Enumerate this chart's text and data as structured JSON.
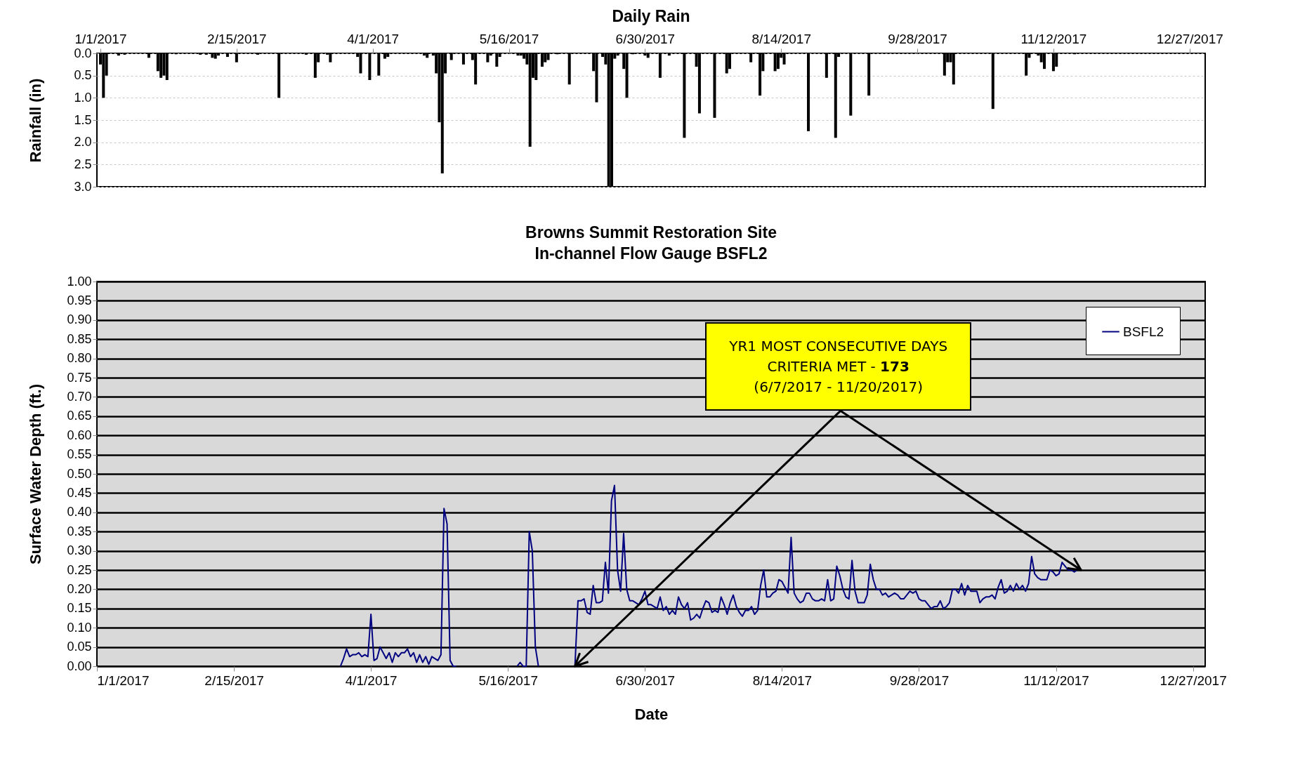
{
  "chart_data": [
    {
      "type": "bar",
      "title": "Daily Rain",
      "ylabel": "Rainfall (in)",
      "color": "#000000",
      "grid": "y",
      "xlim": [
        "2017-01-01",
        "2017-12-31"
      ],
      "xticks": [
        {
          "value": "2017-01-01",
          "label": "1/1/2017"
        },
        {
          "value": "2017-02-15",
          "label": "2/15/2017"
        },
        {
          "value": "2017-04-01",
          "label": "4/1/2017"
        },
        {
          "value": "2017-05-16",
          "label": "5/16/2017"
        },
        {
          "value": "2017-06-30",
          "label": "6/30/2017"
        },
        {
          "value": "2017-08-14",
          "label": "8/14/2017"
        },
        {
          "value": "2017-09-28",
          "label": "9/28/2017"
        },
        {
          "value": "2017-11-12",
          "label": "11/12/2017"
        },
        {
          "value": "2017-12-27",
          "label": "12/27/2017"
        }
      ],
      "ylim": [
        3,
        0
      ],
      "yticks": [
        {
          "value": 0,
          "label": "0.0"
        },
        {
          "value": 0.5,
          "label": "0.5"
        },
        {
          "value": 1,
          "label": "1.0"
        },
        {
          "value": 1.5,
          "label": "1.5"
        },
        {
          "value": 2,
          "label": "2.0"
        },
        {
          "value": 2.5,
          "label": "2.5"
        },
        {
          "value": 3,
          "label": "3.0"
        }
      ],
      "x": [
        "2017-01-01",
        "2017-01-02",
        "2017-01-03",
        "2017-01-07",
        "2017-01-09",
        "2017-01-17",
        "2017-01-20",
        "2017-01-21",
        "2017-01-22",
        "2017-01-23",
        "2017-01-26",
        "2017-02-03",
        "2017-02-05",
        "2017-02-07",
        "2017-02-08",
        "2017-02-09",
        "2017-02-12",
        "2017-02-15",
        "2017-02-22",
        "2017-03-01",
        "2017-03-10",
        "2017-03-13",
        "2017-03-14",
        "2017-03-17",
        "2017-03-18",
        "2017-03-27",
        "2017-03-28",
        "2017-03-31",
        "2017-04-03",
        "2017-04-05",
        "2017-04-06",
        "2017-04-18",
        "2017-04-19",
        "2017-04-21",
        "2017-04-22",
        "2017-04-23",
        "2017-04-24",
        "2017-04-25",
        "2017-04-27",
        "2017-05-01",
        "2017-05-04",
        "2017-05-05",
        "2017-05-09",
        "2017-05-10",
        "2017-05-12",
        "2017-05-13",
        "2017-05-19",
        "2017-05-20",
        "2017-05-21",
        "2017-05-22",
        "2017-05-23",
        "2017-05-24",
        "2017-05-25",
        "2017-05-27",
        "2017-05-28",
        "2017-05-29",
        "2017-06-01",
        "2017-06-05",
        "2017-06-13",
        "2017-06-14",
        "2017-06-16",
        "2017-06-17",
        "2017-06-18",
        "2017-06-19",
        "2017-06-20",
        "2017-06-21",
        "2017-06-23",
        "2017-06-24",
        "2017-06-26",
        "2017-06-30",
        "2017-07-01",
        "2017-07-05",
        "2017-07-08",
        "2017-07-13",
        "2017-07-17",
        "2017-07-18",
        "2017-07-23",
        "2017-07-27",
        "2017-07-28",
        "2017-08-04",
        "2017-08-07",
        "2017-08-08",
        "2017-08-12",
        "2017-08-13",
        "2017-08-14",
        "2017-08-15",
        "2017-08-23",
        "2017-08-29",
        "2017-09-01",
        "2017-09-02",
        "2017-09-06",
        "2017-09-12",
        "2017-10-07",
        "2017-10-08",
        "2017-10-09",
        "2017-10-10",
        "2017-10-23",
        "2017-11-03",
        "2017-11-04",
        "2017-11-07",
        "2017-11-08",
        "2017-11-09",
        "2017-11-12",
        "2017-11-13",
        "2017-11-19"
      ],
      "values": [
        0.25,
        1.0,
        0.5,
        0.05,
        0.03,
        0.1,
        0.4,
        0.55,
        0.5,
        0.6,
        0.02,
        0.03,
        0.03,
        0.1,
        0.12,
        0.05,
        0.08,
        0.2,
        0.03,
        1.0,
        0.03,
        0.55,
        0.2,
        0.03,
        0.2,
        0.08,
        0.45,
        0.6,
        0.5,
        0.12,
        0.08,
        0.05,
        0.1,
        0.05,
        0.45,
        1.55,
        2.7,
        0.45,
        0.15,
        0.25,
        0.15,
        0.7,
        0.2,
        0.05,
        0.3,
        0.08,
        0.05,
        0.05,
        0.12,
        0.25,
        2.1,
        0.55,
        0.6,
        0.3,
        0.2,
        0.15,
        0.02,
        0.7,
        0.4,
        1.1,
        0.08,
        0.25,
        3.0,
        3.0,
        0.12,
        0.05,
        0.35,
        1.0,
        0.02,
        0.05,
        0.1,
        0.55,
        0.05,
        1.9,
        0.3,
        1.35,
        1.45,
        0.45,
        0.35,
        0.2,
        0.95,
        0.4,
        0.4,
        0.35,
        0.1,
        0.25,
        1.75,
        0.55,
        1.9,
        0.08,
        1.4,
        0.95,
        0.5,
        0.2,
        0.2,
        0.7,
        1.25,
        0.5,
        0.1,
        0.05,
        0.2,
        0.35,
        0.4,
        0.3,
        0.02
      ]
    },
    {
      "type": "line",
      "title": "Browns Summit Restoration Site\nIn-channel Flow Gauge BSFL2",
      "xlabel": "Date",
      "ylabel": "Surface Water Depth (ft.)",
      "grid": "y",
      "legend": "top right",
      "xlim": [
        "2017-01-01",
        "2017-12-31"
      ],
      "xticks": [
        {
          "value": "2017-01-01",
          "label": "1/1/2017"
        },
        {
          "value": "2017-02-15",
          "label": "2/15/2017"
        },
        {
          "value": "2017-04-01",
          "label": "4/1/2017"
        },
        {
          "value": "2017-05-16",
          "label": "5/16/2017"
        },
        {
          "value": "2017-06-30",
          "label": "6/30/2017"
        },
        {
          "value": "2017-08-14",
          "label": "8/14/2017"
        },
        {
          "value": "2017-09-28",
          "label": "9/28/2017"
        },
        {
          "value": "2017-11-12",
          "label": "11/12/2017"
        },
        {
          "value": "2017-12-27",
          "label": "12/27/2017"
        }
      ],
      "ylim": [
        0,
        1
      ],
      "yticks": [
        {
          "value": 0,
          "label": "0.00"
        },
        {
          "value": 0.05,
          "label": "0.05"
        },
        {
          "value": 0.1,
          "label": "0.10"
        },
        {
          "value": 0.15,
          "label": "0.15"
        },
        {
          "value": 0.2,
          "label": "0.20"
        },
        {
          "value": 0.25,
          "label": "0.25"
        },
        {
          "value": 0.3,
          "label": "0.30"
        },
        {
          "value": 0.35,
          "label": "0.35"
        },
        {
          "value": 0.4,
          "label": "0.40"
        },
        {
          "value": 0.45,
          "label": "0.45"
        },
        {
          "value": 0.5,
          "label": "0.50"
        },
        {
          "value": 0.55,
          "label": "0.55"
        },
        {
          "value": 0.6,
          "label": "0.60"
        },
        {
          "value": 0.65,
          "label": "0.65"
        },
        {
          "value": 0.7,
          "label": "0.70"
        },
        {
          "value": 0.75,
          "label": "0.75"
        },
        {
          "value": 0.8,
          "label": "0.80"
        },
        {
          "value": 0.85,
          "label": "0.85"
        },
        {
          "value": 0.9,
          "label": "0.90"
        },
        {
          "value": 0.95,
          "label": "0.95"
        },
        {
          "value": 1,
          "label": "1.00"
        }
      ],
      "annotations": [
        {
          "text": "YR1 MOST CONSECUTIVE DAYS\nCRITERIA MET - 173\n(6/7/2017 - 11/20/2017)",
          "x": "2017-06-07",
          "y": 0
        }
      ],
      "series": [
        {
          "name": "BSFL2",
          "color": "#000080",
          "x": [
            "2017-03-22",
            "2017-03-23",
            "2017-03-24",
            "2017-03-25",
            "2017-03-26",
            "2017-03-27",
            "2017-03-28",
            "2017-03-29",
            "2017-03-30",
            "2017-03-31",
            "2017-04-01",
            "2017-04-02",
            "2017-04-03",
            "2017-04-04",
            "2017-04-05",
            "2017-04-06",
            "2017-04-07",
            "2017-04-08",
            "2017-04-09",
            "2017-04-10",
            "2017-04-11",
            "2017-04-12",
            "2017-04-13",
            "2017-04-14",
            "2017-04-15",
            "2017-04-16",
            "2017-04-17",
            "2017-04-18",
            "2017-04-19",
            "2017-04-20",
            "2017-04-21",
            "2017-04-22",
            "2017-04-23",
            "2017-04-24",
            "2017-04-25",
            "2017-04-26",
            "2017-04-27",
            "2017-04-28",
            "2017-04-29",
            "2017-04-30",
            "2017-05-19",
            "2017-05-20",
            "2017-05-21",
            "2017-05-22",
            "2017-05-23",
            "2017-05-24",
            "2017-05-25",
            "2017-05-26",
            "2017-05-27",
            "2017-06-07",
            "2017-06-08",
            "2017-06-09",
            "2017-06-10",
            "2017-06-11",
            "2017-06-12",
            "2017-06-13",
            "2017-06-14",
            "2017-06-15",
            "2017-06-16",
            "2017-06-17",
            "2017-06-18",
            "2017-06-19",
            "2017-06-20",
            "2017-06-21",
            "2017-06-22",
            "2017-06-23",
            "2017-06-24",
            "2017-06-25",
            "2017-06-26",
            "2017-06-27",
            "2017-06-28",
            "2017-06-29",
            "2017-06-30",
            "2017-07-01",
            "2017-07-02",
            "2017-07-03",
            "2017-07-04",
            "2017-07-05",
            "2017-07-06",
            "2017-07-07",
            "2017-07-08",
            "2017-07-09",
            "2017-07-10",
            "2017-07-11",
            "2017-07-12",
            "2017-07-13",
            "2017-07-14",
            "2017-07-15",
            "2017-07-16",
            "2017-07-17",
            "2017-07-18",
            "2017-07-19",
            "2017-07-20",
            "2017-07-21",
            "2017-07-22",
            "2017-07-23",
            "2017-07-24",
            "2017-07-25",
            "2017-07-26",
            "2017-07-27",
            "2017-07-28",
            "2017-07-29",
            "2017-07-30",
            "2017-07-31",
            "2017-08-01",
            "2017-08-02",
            "2017-08-03",
            "2017-08-04",
            "2017-08-05",
            "2017-08-06",
            "2017-08-07",
            "2017-08-08",
            "2017-08-09",
            "2017-08-10",
            "2017-08-11",
            "2017-08-12",
            "2017-08-13",
            "2017-08-14",
            "2017-08-15",
            "2017-08-16",
            "2017-08-17",
            "2017-08-18",
            "2017-08-19",
            "2017-08-20",
            "2017-08-21",
            "2017-08-22",
            "2017-08-23",
            "2017-08-24",
            "2017-08-25",
            "2017-08-26",
            "2017-08-27",
            "2017-08-28",
            "2017-08-29",
            "2017-08-30",
            "2017-08-31",
            "2017-09-01",
            "2017-09-02",
            "2017-09-03",
            "2017-09-04",
            "2017-09-05",
            "2017-09-06",
            "2017-09-07",
            "2017-09-08",
            "2017-09-09",
            "2017-09-10",
            "2017-09-11",
            "2017-09-12",
            "2017-09-13",
            "2017-09-14",
            "2017-09-15",
            "2017-09-16",
            "2017-09-17",
            "2017-09-18",
            "2017-09-19",
            "2017-09-20",
            "2017-09-21",
            "2017-09-22",
            "2017-09-23",
            "2017-09-24",
            "2017-09-25",
            "2017-09-26",
            "2017-09-27",
            "2017-09-28",
            "2017-09-29",
            "2017-09-30",
            "2017-10-01",
            "2017-10-02",
            "2017-10-03",
            "2017-10-04",
            "2017-10-05",
            "2017-10-06",
            "2017-10-07",
            "2017-10-08",
            "2017-10-09",
            "2017-10-10",
            "2017-10-11",
            "2017-10-12",
            "2017-10-13",
            "2017-10-14",
            "2017-10-15",
            "2017-10-16",
            "2017-10-17",
            "2017-10-18",
            "2017-10-19",
            "2017-10-20",
            "2017-10-21",
            "2017-10-22",
            "2017-10-23",
            "2017-10-24",
            "2017-10-25",
            "2017-10-26",
            "2017-10-27",
            "2017-10-28",
            "2017-10-29",
            "2017-10-30",
            "2017-10-31",
            "2017-11-01",
            "2017-11-02",
            "2017-11-03",
            "2017-11-04",
            "2017-11-05",
            "2017-11-06",
            "2017-11-07",
            "2017-11-08",
            "2017-11-09",
            "2017-11-10",
            "2017-11-11",
            "2017-11-12",
            "2017-11-13",
            "2017-11-14",
            "2017-11-15",
            "2017-11-16",
            "2017-11-17",
            "2017-11-18",
            "2017-11-19"
          ],
          "values": [
            0.0,
            0.02,
            0.045,
            0.025,
            0.03,
            0.03,
            0.035,
            0.025,
            0.03,
            0.025,
            0.135,
            0.015,
            0.02,
            0.05,
            0.035,
            0.02,
            0.035,
            0.01,
            0.035,
            0.025,
            0.035,
            0.035,
            0.045,
            0.025,
            0.035,
            0.01,
            0.03,
            0.01,
            0.025,
            0.005,
            0.025,
            0.02,
            0.015,
            0.03,
            0.41,
            0.37,
            0.015,
            0.0,
            0.0,
            null,
            0.0,
            0.01,
            0.0,
            0.0,
            0.35,
            0.3,
            0.05,
            0.0,
            null,
            0.0,
            0.17,
            0.17,
            0.175,
            0.14,
            0.135,
            0.21,
            0.165,
            0.165,
            0.17,
            0.27,
            0.19,
            0.43,
            0.47,
            0.25,
            0.195,
            0.345,
            0.2,
            0.17,
            0.17,
            0.165,
            0.16,
            0.175,
            0.195,
            0.16,
            0.16,
            0.155,
            0.15,
            0.18,
            0.145,
            0.155,
            0.135,
            0.145,
            0.135,
            0.18,
            0.16,
            0.15,
            0.165,
            0.12,
            0.125,
            0.135,
            0.125,
            0.15,
            0.17,
            0.165,
            0.14,
            0.145,
            0.14,
            0.18,
            0.16,
            0.135,
            0.165,
            0.185,
            0.155,
            0.14,
            0.13,
            0.145,
            0.145,
            0.155,
            0.135,
            0.145,
            0.21,
            0.25,
            0.18,
            0.18,
            0.19,
            0.195,
            0.225,
            0.22,
            0.205,
            0.19,
            0.335,
            0.19,
            0.175,
            0.165,
            0.17,
            0.19,
            0.19,
            0.175,
            0.17,
            0.17,
            0.175,
            0.17,
            0.225,
            0.17,
            0.175,
            0.26,
            0.235,
            0.2,
            0.18,
            0.175,
            0.275,
            0.195,
            0.165,
            0.165,
            0.165,
            0.185,
            0.265,
            0.225,
            0.2,
            0.2,
            0.185,
            0.19,
            0.18,
            0.185,
            0.19,
            0.185,
            0.175,
            0.175,
            0.185,
            0.195,
            0.19,
            0.195,
            0.175,
            0.17,
            0.17,
            0.16,
            0.15,
            0.155,
            0.155,
            0.17,
            0.15,
            0.155,
            0.165,
            0.2,
            0.2,
            0.19,
            0.215,
            0.185,
            0.21,
            0.195,
            0.195,
            0.195,
            0.165,
            0.175,
            0.18,
            0.18,
            0.185,
            0.175,
            0.205,
            0.225,
            0.19,
            0.195,
            0.21,
            0.195,
            0.215,
            0.2,
            0.21,
            0.195,
            0.215,
            0.285,
            0.24,
            0.23,
            0.225,
            0.225,
            0.225,
            0.25,
            0.245,
            0.235,
            0.24,
            0.27,
            0.26,
            0.25,
            0.25,
            0.245,
            0.25
          ]
        }
      ]
    }
  ]
}
